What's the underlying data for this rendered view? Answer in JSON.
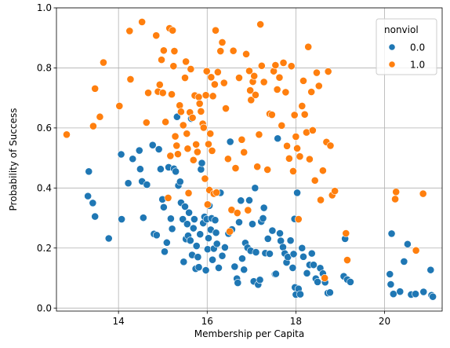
{
  "chart_data": {
    "type": "scatter",
    "title": "",
    "xlabel": "Membership per Capita",
    "ylabel": "Probability of Success",
    "xlim": [
      12.6,
      21.3
    ],
    "ylim": [
      -0.01,
      1.0
    ],
    "xticks": [
      14,
      16,
      18,
      20
    ],
    "yticks": [
      0.0,
      0.2,
      0.4,
      0.6,
      0.8,
      1.0
    ],
    "grid": true,
    "legend": {
      "title": "nonviol",
      "placement": "top-right"
    },
    "series": [
      {
        "name": "0.0",
        "color": "#1f77b4",
        "points": [
          [
            13.33,
            0.455
          ],
          [
            13.31,
            0.373
          ],
          [
            13.42,
            0.35
          ],
          [
            13.47,
            0.305
          ],
          [
            13.78,
            0.232
          ],
          [
            14.06,
            0.512
          ],
          [
            14.07,
            0.296
          ],
          [
            14.22,
            0.416
          ],
          [
            14.32,
            0.497
          ],
          [
            14.47,
            0.525
          ],
          [
            14.49,
            0.463
          ],
          [
            14.53,
            0.422
          ],
          [
            14.56,
            0.301
          ],
          [
            14.64,
            0.411
          ],
          [
            14.77,
            0.543
          ],
          [
            14.8,
            0.247
          ],
          [
            14.86,
            0.243
          ],
          [
            14.91,
            0.529
          ],
          [
            14.95,
            0.463
          ],
          [
            14.99,
            0.362
          ],
          [
            15.02,
            0.336
          ],
          [
            15.04,
            0.188
          ],
          [
            15.09,
            0.218
          ],
          [
            15.13,
            0.469
          ],
          [
            15.18,
            0.298
          ],
          [
            15.21,
            0.264
          ],
          [
            15.25,
            0.464
          ],
          [
            15.29,
            0.455
          ],
          [
            15.32,
            0.637
          ],
          [
            15.35,
            0.408
          ],
          [
            15.39,
            0.421
          ],
          [
            15.41,
            0.351
          ],
          [
            15.45,
            0.296
          ],
          [
            15.47,
            0.154
          ],
          [
            15.5,
            0.338
          ],
          [
            15.52,
            0.23
          ],
          [
            15.55,
            0.28
          ],
          [
            15.57,
            0.241
          ],
          [
            15.59,
            0.318
          ],
          [
            15.62,
            0.225
          ],
          [
            15.64,
            0.631
          ],
          [
            15.66,
            0.177
          ],
          [
            15.69,
            0.266
          ],
          [
            15.71,
            0.296
          ],
          [
            15.74,
            0.131
          ],
          [
            15.76,
            0.207
          ],
          [
            15.79,
            0.17
          ],
          [
            15.81,
            0.136
          ],
          [
            15.84,
            0.246
          ],
          [
            15.86,
            0.462
          ],
          [
            15.88,
            0.483
          ],
          [
            15.91,
            0.283
          ],
          [
            15.94,
            0.304
          ],
          [
            15.97,
            0.126
          ],
          [
            15.99,
            0.296
          ],
          [
            16.01,
            0.196
          ],
          [
            16.03,
            0.233
          ],
          [
            16.05,
            0.341
          ],
          [
            16.08,
            0.261
          ],
          [
            16.1,
            0.299
          ],
          [
            16.12,
            0.161
          ],
          [
            16.15,
            0.198
          ],
          [
            16.18,
            0.293
          ],
          [
            16.2,
            0.251
          ],
          [
            16.22,
            0.214
          ],
          [
            16.26,
            0.134
          ],
          [
            16.3,
            0.384
          ],
          [
            16.34,
            0.174
          ],
          [
            16.4,
            0.202
          ],
          [
            16.48,
            0.248
          ],
          [
            16.52,
            0.554
          ],
          [
            16.56,
            0.262
          ],
          [
            16.62,
            0.138
          ],
          [
            16.67,
            0.098
          ],
          [
            16.69,
            0.084
          ],
          [
            16.72,
            0.286
          ],
          [
            16.76,
            0.358
          ],
          [
            16.79,
            0.165
          ],
          [
            16.83,
            0.128
          ],
          [
            16.86,
            0.217
          ],
          [
            16.91,
            0.201
          ],
          [
            16.95,
            0.359
          ],
          [
            16.98,
            0.191
          ],
          [
            17.02,
            0.28
          ],
          [
            17.05,
            0.089
          ],
          [
            17.08,
            0.4
          ],
          [
            17.1,
            0.186
          ],
          [
            17.15,
            0.078
          ],
          [
            17.19,
            0.094
          ],
          [
            17.22,
            0.288
          ],
          [
            17.26,
            0.299
          ],
          [
            17.28,
            0.334
          ],
          [
            17.31,
            0.183
          ],
          [
            17.37,
            0.231
          ],
          [
            17.41,
            0.181
          ],
          [
            17.47,
            0.258
          ],
          [
            17.53,
            0.113
          ],
          [
            17.55,
            0.114
          ],
          [
            17.59,
            0.565
          ],
          [
            17.64,
            0.249
          ],
          [
            17.66,
            0.224
          ],
          [
            17.71,
            0.203
          ],
          [
            17.75,
            0.182
          ],
          [
            17.79,
            0.152
          ],
          [
            17.82,
            0.17
          ],
          [
            17.88,
            0.225
          ],
          [
            17.93,
            0.134
          ],
          [
            17.95,
            0.18
          ],
          [
            17.97,
            0.297
          ],
          [
            17.98,
            0.069
          ],
          [
            18.0,
            0.045
          ],
          [
            18.03,
            0.384
          ],
          [
            18.06,
            0.064
          ],
          [
            18.1,
            0.046
          ],
          [
            18.14,
            0.2
          ],
          [
            18.17,
            0.171
          ],
          [
            18.25,
            0.116
          ],
          [
            18.31,
            0.144
          ],
          [
            18.36,
            0.182
          ],
          [
            18.4,
            0.144
          ],
          [
            18.45,
            0.098
          ],
          [
            18.49,
            0.087
          ],
          [
            18.55,
            0.133
          ],
          [
            18.61,
            0.115
          ],
          [
            18.66,
            0.086
          ],
          [
            18.72,
            0.05
          ],
          [
            18.77,
            0.052
          ],
          [
            19.08,
            0.106
          ],
          [
            19.11,
            0.231
          ],
          [
            19.16,
            0.095
          ],
          [
            19.23,
            0.087
          ],
          [
            20.12,
            0.113
          ],
          [
            20.14,
            0.079
          ],
          [
            20.16,
            0.248
          ],
          [
            20.2,
            0.047
          ],
          [
            20.35,
            0.055
          ],
          [
            20.44,
            0.155
          ],
          [
            20.52,
            0.213
          ],
          [
            20.6,
            0.045
          ],
          [
            20.7,
            0.047
          ],
          [
            20.88,
            0.054
          ],
          [
            21.04,
            0.127
          ],
          [
            21.06,
            0.043
          ],
          [
            21.09,
            0.038
          ]
        ]
      },
      {
        "name": "1.0",
        "color": "#ff7f0e",
        "points": [
          [
            12.83,
            0.578
          ],
          [
            13.43,
            0.606
          ],
          [
            13.47,
            0.731
          ],
          [
            13.58,
            0.637
          ],
          [
            13.66,
            0.818
          ],
          [
            14.02,
            0.673
          ],
          [
            14.25,
            0.923
          ],
          [
            14.27,
            0.762
          ],
          [
            14.53,
            0.953
          ],
          [
            14.63,
            0.618
          ],
          [
            14.67,
            0.717
          ],
          [
            14.85,
            0.908
          ],
          [
            14.89,
            0.721
          ],
          [
            14.93,
            0.744
          ],
          [
            14.97,
            0.827
          ],
          [
            15.0,
            0.717
          ],
          [
            15.02,
            0.858
          ],
          [
            15.06,
            0.62
          ],
          [
            15.12,
            0.367
          ],
          [
            15.15,
            0.932
          ],
          [
            15.17,
            0.507
          ],
          [
            15.2,
            0.712
          ],
          [
            15.22,
            0.925
          ],
          [
            15.24,
            0.806
          ],
          [
            15.26,
            0.856
          ],
          [
            15.28,
            0.572
          ],
          [
            15.31,
            0.541
          ],
          [
            15.34,
            0.513
          ],
          [
            15.38,
            0.675
          ],
          [
            15.41,
            0.654
          ],
          [
            15.46,
            0.609
          ],
          [
            15.5,
            0.767
          ],
          [
            15.52,
            0.821
          ],
          [
            15.54,
            0.581
          ],
          [
            15.56,
            0.531
          ],
          [
            15.58,
            0.383
          ],
          [
            15.61,
            0.652
          ],
          [
            15.63,
            0.796
          ],
          [
            15.67,
            0.634
          ],
          [
            15.69,
            0.493
          ],
          [
            15.72,
            0.708
          ],
          [
            15.75,
            0.545
          ],
          [
            15.78,
            0.52
          ],
          [
            15.81,
            0.703
          ],
          [
            15.83,
            0.681
          ],
          [
            15.86,
            0.655
          ],
          [
            15.9,
            0.614
          ],
          [
            15.92,
            0.601
          ],
          [
            15.95,
            0.431
          ],
          [
            15.97,
            0.709
          ],
          [
            15.99,
            0.789
          ],
          [
            16.01,
            0.345
          ],
          [
            16.03,
            0.546
          ],
          [
            16.05,
            0.393
          ],
          [
            16.07,
            0.581
          ],
          [
            16.09,
            0.769
          ],
          [
            16.11,
            0.524
          ],
          [
            16.13,
            0.706
          ],
          [
            16.15,
            0.381
          ],
          [
            16.17,
            0.745
          ],
          [
            16.19,
            0.925
          ],
          [
            16.21,
            0.385
          ],
          [
            16.24,
            0.786
          ],
          [
            16.3,
            0.856
          ],
          [
            16.34,
            0.885
          ],
          [
            16.38,
            0.75
          ],
          [
            16.42,
            0.665
          ],
          [
            16.47,
            0.497
          ],
          [
            16.51,
            0.255
          ],
          [
            16.55,
            0.327
          ],
          [
            16.59,
            0.857
          ],
          [
            16.64,
            0.466
          ],
          [
            16.68,
            0.317
          ],
          [
            16.72,
            0.767
          ],
          [
            16.78,
            0.561
          ],
          [
            16.83,
            0.519
          ],
          [
            16.88,
            0.846
          ],
          [
            16.92,
            0.326
          ],
          [
            16.95,
            0.79
          ],
          [
            16.97,
            0.725
          ],
          [
            16.99,
            0.693
          ],
          [
            17.03,
            0.754
          ],
          [
            17.06,
            0.773
          ],
          [
            17.09,
            0.71
          ],
          [
            17.13,
            0.471
          ],
          [
            17.17,
            0.578
          ],
          [
            17.2,
            0.945
          ],
          [
            17.23,
            0.807
          ],
          [
            17.28,
            0.753
          ],
          [
            17.36,
            0.461
          ],
          [
            17.41,
            0.647
          ],
          [
            17.46,
            0.644
          ],
          [
            17.5,
            0.789
          ],
          [
            17.54,
            0.809
          ],
          [
            17.58,
            0.728
          ],
          [
            17.63,
            0.768
          ],
          [
            17.68,
            0.608
          ],
          [
            17.72,
            0.817
          ],
          [
            17.77,
            0.719
          ],
          [
            17.8,
            0.54
          ],
          [
            17.85,
            0.498
          ],
          [
            17.9,
            0.806
          ],
          [
            17.94,
            0.456
          ],
          [
            17.97,
            0.643
          ],
          [
            18.0,
            0.571
          ],
          [
            18.03,
            0.532
          ],
          [
            18.06,
            0.296
          ],
          [
            18.09,
            0.505
          ],
          [
            18.14,
            0.673
          ],
          [
            18.17,
            0.757
          ],
          [
            18.2,
            0.645
          ],
          [
            18.24,
            0.585
          ],
          [
            18.28,
            0.87
          ],
          [
            18.31,
            0.496
          ],
          [
            18.35,
            0.72
          ],
          [
            18.38,
            0.592
          ],
          [
            18.43,
            0.425
          ],
          [
            18.47,
            0.784
          ],
          [
            18.52,
            0.74
          ],
          [
            18.56,
            0.36
          ],
          [
            18.61,
            0.458
          ],
          [
            18.65,
            0.1
          ],
          [
            18.69,
            0.553
          ],
          [
            18.73,
            0.788
          ],
          [
            18.78,
            0.541
          ],
          [
            18.82,
            0.376
          ],
          [
            18.88,
            0.39
          ],
          [
            19.13,
            0.249
          ],
          [
            19.16,
            0.16
          ],
          [
            20.24,
            0.363
          ],
          [
            20.26,
            0.387
          ],
          [
            20.71,
            0.192
          ],
          [
            20.87,
            0.381
          ]
        ]
      }
    ]
  }
}
